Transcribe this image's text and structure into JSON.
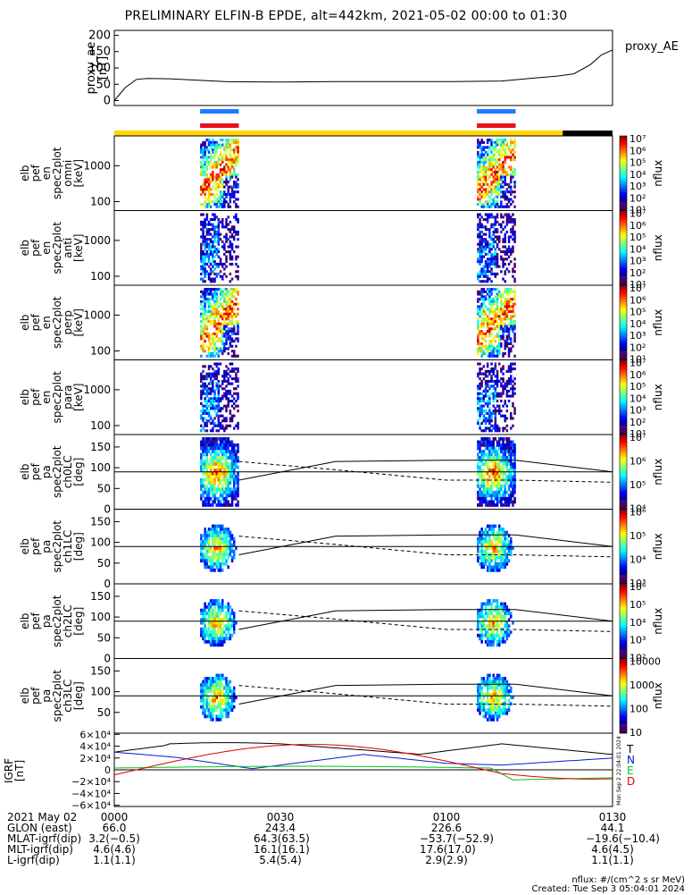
{
  "title": "PRELIMINARY ELFIN-B EPDE, alt=442km, 2021-05-02 00:00 to 01:30",
  "colors": {
    "sci_zone": "#ffd400",
    "sci_zone_end": "#000000",
    "fgm_blue": "#1e7bff",
    "fgm_red": "#e8101a",
    "n_comp": "#0a1ad6",
    "e_comp": "#00c21a",
    "d_comp": "#e00000",
    "total": "#000000",
    "ae": "#000000"
  },
  "chart_data": [
    {
      "type": "line",
      "ylabel": "proxy_ae\n[nT]",
      "series": [
        {
          "name": "proxy_AE",
          "x_min": [
            0,
            2,
            4,
            6,
            10,
            20,
            30,
            40,
            50,
            60,
            70,
            75,
            80,
            83,
            86,
            88,
            90
          ],
          "values": [
            0,
            40,
            65,
            68,
            67,
            58,
            57,
            58,
            58,
            58,
            60,
            68,
            75,
            82,
            110,
            140,
            155
          ]
        }
      ],
      "xlim": [
        0,
        90
      ],
      "ylim": [
        -15,
        215
      ],
      "yticks": [
        0,
        50,
        100,
        150,
        200
      ]
    },
    {
      "type": "heatmap",
      "panels": [
        {
          "id": "omni",
          "ylabel": [
            "elb",
            "pef",
            "en",
            "spec2plot",
            "omni",
            "[keV]"
          ],
          "yticks": [
            "1000",
            "100"
          ],
          "cbar": [
            "10¹",
            "10²",
            "10³",
            "10⁴",
            "10⁵",
            "10⁶",
            "10⁷"
          ]
        },
        {
          "id": "anti",
          "ylabel": [
            "elb",
            "pef",
            "en",
            "spec2plot",
            "anti",
            "[keV]"
          ],
          "yticks": [
            "1000",
            "100"
          ],
          "cbar": [
            "10¹",
            "10²",
            "10³",
            "10⁴",
            "10⁵",
            "10⁶",
            "10⁷"
          ]
        },
        {
          "id": "perp",
          "ylabel": [
            "elb",
            "pef",
            "en",
            "spec2plot",
            "perp",
            "[keV]"
          ],
          "yticks": [
            "1000",
            "100"
          ],
          "cbar": [
            "10¹",
            "10²",
            "10³",
            "10⁴",
            "10⁵",
            "10⁶",
            "10⁷"
          ]
        },
        {
          "id": "para",
          "ylabel": [
            "elb",
            "pef",
            "en",
            "spec2plot",
            "para",
            "[keV]"
          ],
          "yticks": [
            "1000",
            "100"
          ],
          "cbar": [
            "10¹",
            "10²",
            "10³",
            "10⁴",
            "10⁵",
            "10⁶",
            "10⁷"
          ]
        },
        {
          "id": "ch0LC",
          "ylabel": [
            "elb",
            "pef",
            "pa",
            "spec2plot",
            "ch0LC",
            "[deg]"
          ],
          "yticks": [
            "150",
            "100",
            "50",
            "0"
          ],
          "cbar": [
            "10⁴",
            "10⁵",
            "10⁶",
            "10⁷"
          ]
        },
        {
          "id": "ch1LC",
          "ylabel": [
            "elb",
            "pef",
            "pa",
            "spec2plot",
            "ch1LC",
            "[deg]"
          ],
          "yticks": [
            "150",
            "100",
            "50",
            "0"
          ],
          "cbar": [
            "10³",
            "10⁴",
            "10⁵",
            "10⁶"
          ]
        },
        {
          "id": "ch2LC",
          "ylabel": [
            "elb",
            "pef",
            "pa",
            "spec2plot",
            "ch2LC",
            "[deg]"
          ],
          "yticks": [
            "150",
            "100",
            "50",
            "0"
          ],
          "cbar": [
            "10²",
            "10³",
            "10⁴",
            "10⁵",
            "10⁶"
          ]
        },
        {
          "id": "ch3LC",
          "ylabel": [
            "elb",
            "pef",
            "pa",
            "spec2plot",
            "ch3LC",
            "[deg]"
          ],
          "yticks": [
            "150",
            "100",
            "50"
          ],
          "cbar": [
            "10",
            "100",
            "1000",
            "10000"
          ]
        }
      ],
      "cbar_label": "nflux"
    },
    {
      "type": "line",
      "ylabel": "IGRF\n[nT]",
      "yticks": [
        "6×10⁴",
        "4×10⁴",
        "2×10⁴",
        "0",
        "−2×10⁴",
        "−4×10⁴",
        "−6×10⁴"
      ],
      "series_labels": [
        "T",
        "N",
        "E",
        "D"
      ],
      "side_note": "Mon Sep  2 22:04:01 2024"
    }
  ],
  "footer": {
    "rows": [
      {
        "label": "2021 May 02",
        "vals": [
          "0000",
          "0030",
          "0100",
          "0130"
        ]
      },
      {
        "label": "GLON (east)",
        "vals": [
          "66.0",
          "243.4",
          "226.6",
          "44.1"
        ]
      },
      {
        "label": "MLAT-igrf(dip)",
        "vals": [
          "3.2(−0.5)",
          "64.3(63.5)",
          "−53.7(−52.9)",
          "−19.6(−10.4)"
        ]
      },
      {
        "label": "MLT-igrf(dip)",
        "vals": [
          "4.6(4.6)",
          "16.1(16.1)",
          "17.6(17.0)",
          "4.6(4.5)"
        ]
      },
      {
        "label": "L-igrf(dip)",
        "vals": [
          "1.1(1.1)",
          "5.4(5.4)",
          "2.9(2.9)",
          "1.1(1.1)"
        ]
      }
    ],
    "units": "nflux: #/(cm^2 s sr MeV)",
    "created": "Created: Tue Sep  3 05:04:01 2024"
  }
}
